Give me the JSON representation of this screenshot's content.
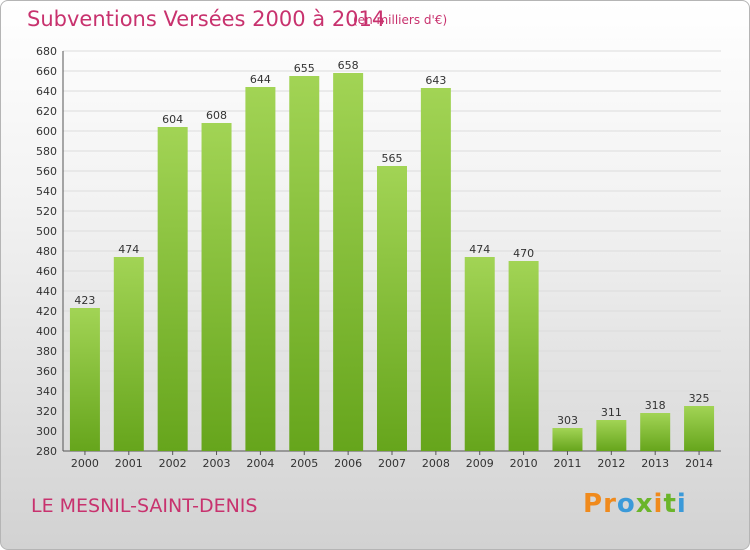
{
  "header": {
    "title": "Subventions Versées 2000 à 2014",
    "subtitle": "(en milliers d'€)"
  },
  "footer": {
    "location": "LE MESNIL-SAINT-DENIS",
    "brand": "Proxiti"
  },
  "colors": {
    "title": "#c8326e",
    "bar_light": "#a2d455",
    "bar_dark": "#66a51c",
    "grid": "#dcdcdc",
    "brand_letters": [
      "#f08a1c",
      "#f08a1c",
      "#3b9ad9",
      "#6bb52a",
      "#f08a1c",
      "#6bb52a",
      "#3b9ad9"
    ]
  },
  "chart_data": {
    "type": "bar",
    "categories": [
      "2000",
      "2001",
      "2002",
      "2003",
      "2004",
      "2005",
      "2006",
      "2007",
      "2008",
      "2009",
      "2010",
      "2011",
      "2012",
      "2013",
      "2014"
    ],
    "values": [
      423,
      474,
      604,
      608,
      644,
      655,
      658,
      565,
      643,
      474,
      470,
      303,
      311,
      318,
      325
    ],
    "title": "Subventions Versées 2000 à 2014",
    "xlabel": "",
    "ylabel": "",
    "ylim": [
      280,
      680
    ],
    "yticks": [
      280,
      300,
      320,
      340,
      360,
      380,
      400,
      420,
      440,
      460,
      480,
      500,
      520,
      540,
      560,
      580,
      600,
      620,
      640,
      660,
      680
    ],
    "grid": true,
    "legend": "none",
    "data_labels": true
  }
}
